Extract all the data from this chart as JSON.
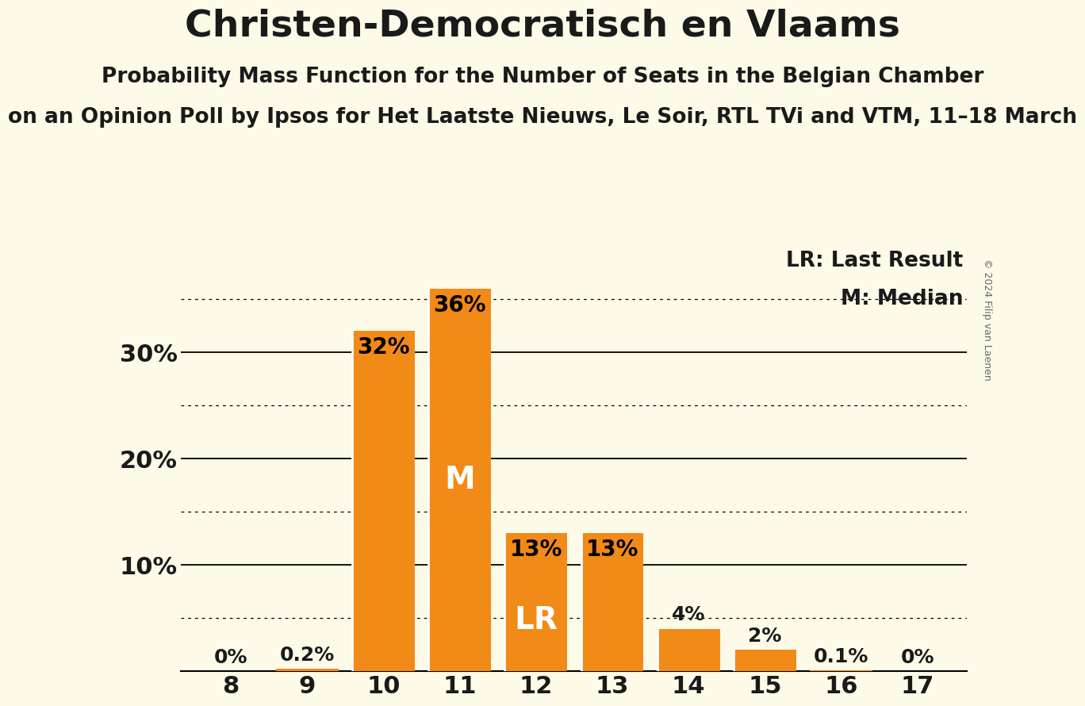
{
  "title": "Christen-Democratisch en Vlaams",
  "subtitle1": "Probability Mass Function for the Number of Seats in the Belgian Chamber",
  "subtitle2": "on an Opinion Poll by Ipsos for Het Laatste Nieuws, Le Soir, RTL TVi and VTM, 11–18 March",
  "copyright": "© 2024 Filip van Laenen",
  "seats": [
    8,
    9,
    10,
    11,
    12,
    13,
    14,
    15,
    16,
    17
  ],
  "probabilities": [
    0.0,
    0.2,
    32.0,
    36.0,
    13.0,
    13.0,
    4.0,
    2.0,
    0.1,
    0.0
  ],
  "bar_color": "#F28A17",
  "background_color": "#FDFAE8",
  "text_color": "#1A1A1A",
  "LR_seat": 12,
  "M_seat": 11,
  "ylim": [
    0,
    40
  ],
  "yticks_solid": [
    0,
    10,
    20,
    30
  ],
  "yticks_dotted": [
    5,
    15,
    25,
    35
  ],
  "legend_lr": "LR: Last Result",
  "legend_m": "M: Median",
  "bar_width": 0.82
}
